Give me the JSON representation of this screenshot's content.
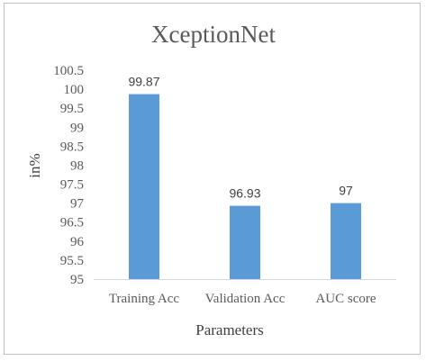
{
  "chart_data": {
    "type": "bar",
    "title": "XceptionNet",
    "xlabel": "Parameters",
    "ylabel": "in%",
    "categories": [
      "Training Acc",
      "Validation Acc",
      "AUC score"
    ],
    "values": [
      99.87,
      96.93,
      97
    ],
    "value_labels": [
      "99.87",
      "96.93",
      "97"
    ],
    "ylim": [
      95,
      100.5
    ],
    "yticks": [
      95,
      95.5,
      96,
      96.5,
      97,
      97.5,
      98,
      98.5,
      99,
      99.5,
      100,
      100.5
    ],
    "ytick_labels": [
      "95",
      "95.5",
      "96",
      "96.5",
      "97",
      "97.5",
      "98",
      "98.5",
      "99",
      "99.5",
      "100",
      "100.5"
    ],
    "bar_color": "#5b9bd5",
    "grid": false,
    "legend": "none"
  }
}
